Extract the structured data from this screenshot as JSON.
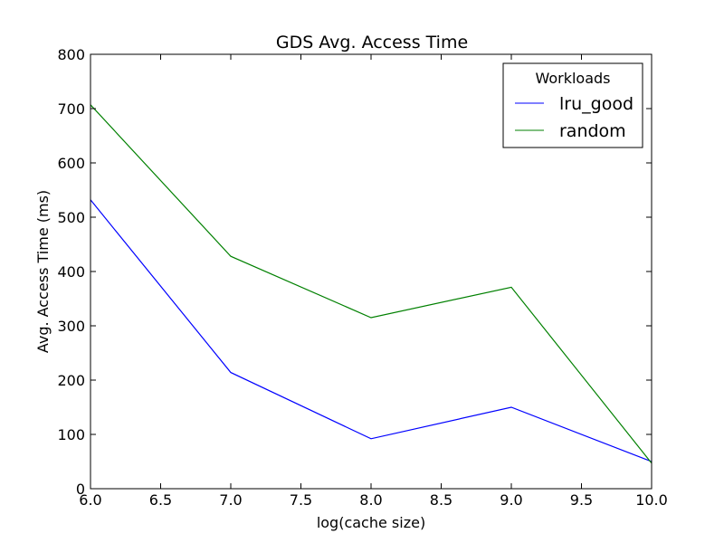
{
  "chart_data": {
    "type": "line",
    "title": "GDS Avg. Access Time",
    "xlabel": "log(cache size)",
    "ylabel": "Avg. Access Time (ms)",
    "xlim": [
      6.0,
      10.0
    ],
    "ylim": [
      0,
      800
    ],
    "xticks": [
      "6.0",
      "6.5",
      "7.0",
      "7.5",
      "8.0",
      "8.5",
      "9.0",
      "9.5",
      "10.0"
    ],
    "yticks": [
      "0",
      "100",
      "200",
      "300",
      "400",
      "500",
      "600",
      "700",
      "800"
    ],
    "grid": false,
    "legend": {
      "title": "Workloads",
      "placement": "top-right"
    },
    "x": [
      6,
      7,
      8,
      9,
      10
    ],
    "series": [
      {
        "name": "lru_good",
        "color": "#0000ff",
        "values": [
          532,
          214,
          92,
          150,
          50
        ]
      },
      {
        "name": "random",
        "color": "#008000",
        "values": [
          707,
          428,
          315,
          371,
          47
        ]
      }
    ]
  }
}
